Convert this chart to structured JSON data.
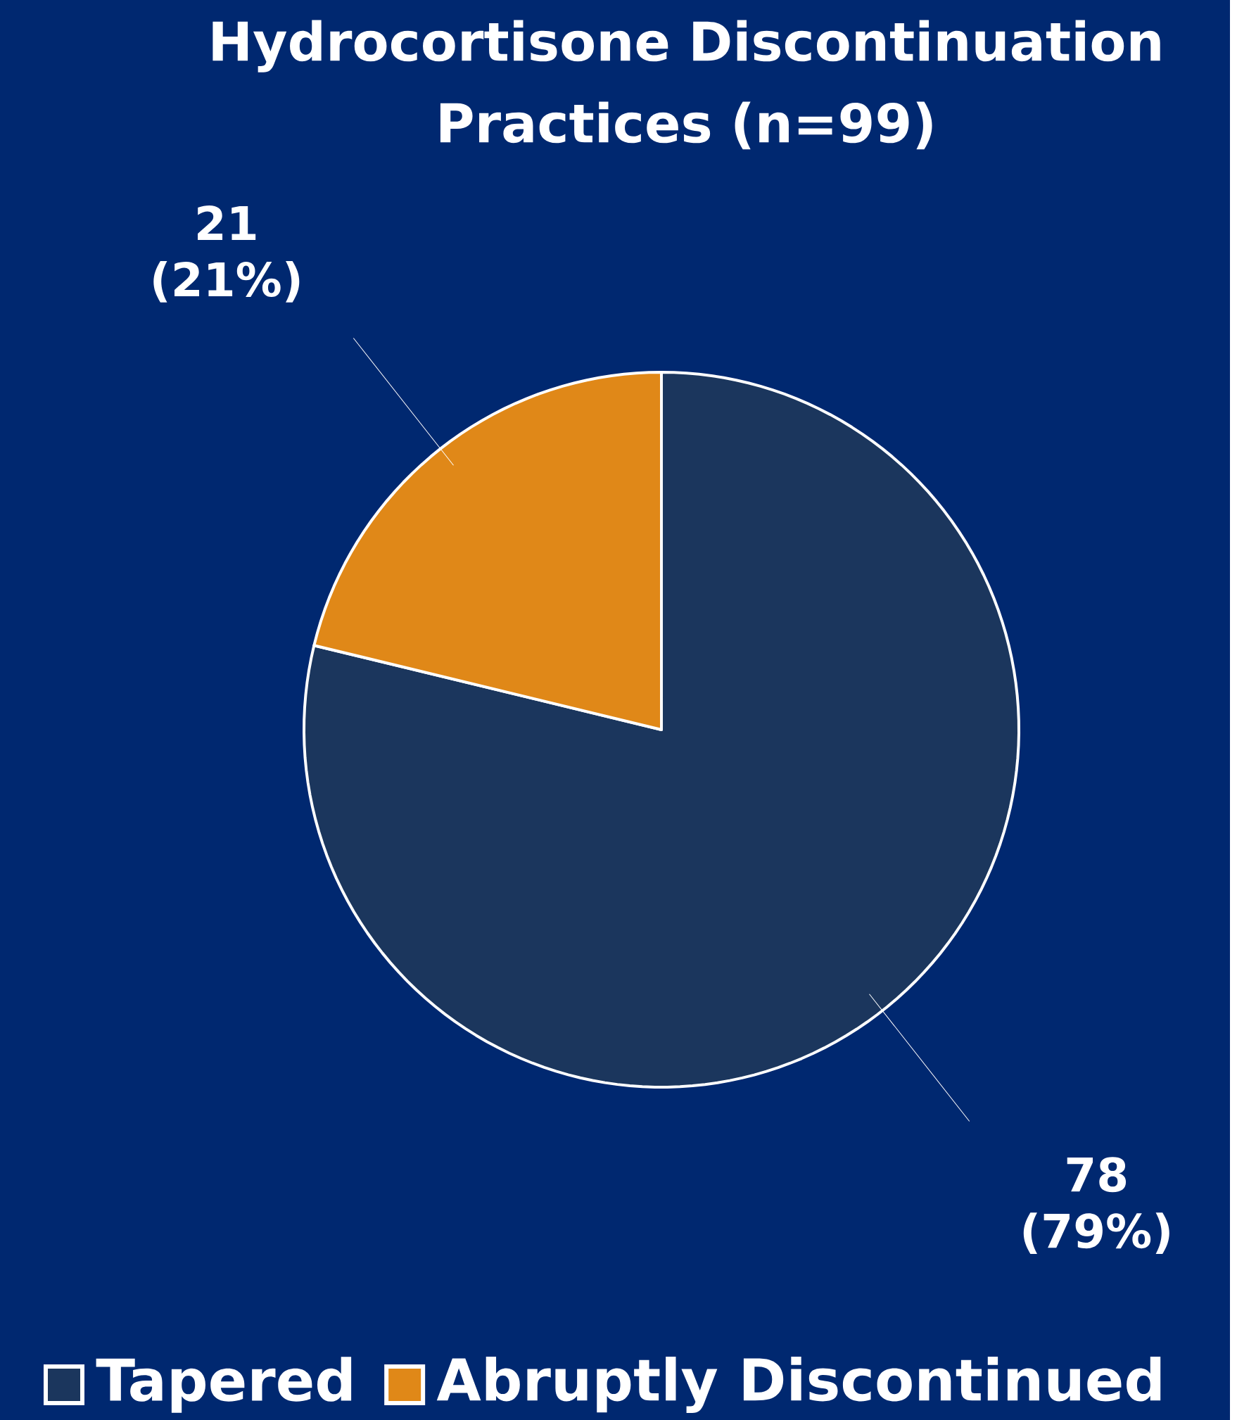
{
  "chart_data": {
    "type": "pie",
    "title": "Hydrocortisone Discontinuation Practices (n=99)",
    "categories": [
      "Tapered",
      "Abruptly Discontinued"
    ],
    "values": [
      78,
      21
    ],
    "colors": [
      "#1b365d",
      "#e08818"
    ],
    "value_labels": [
      "78 (79%)",
      "21 (21%)"
    ],
    "legend": "bottom"
  }
}
